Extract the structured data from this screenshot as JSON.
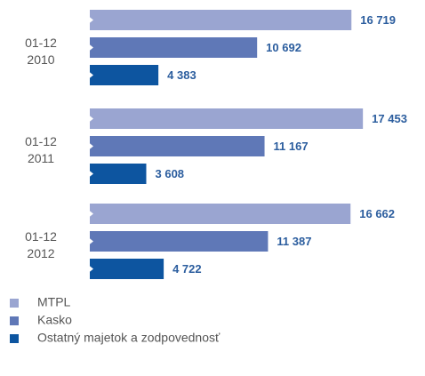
{
  "chart_data": {
    "type": "bar",
    "orientation": "horizontal",
    "categories": [
      "01-12\n2010",
      "01-12\n2011",
      "01-12\n2012"
    ],
    "series": [
      {
        "name": "MTPL",
        "color": "#9aa5d1",
        "values": [
          16719,
          17453,
          16662
        ],
        "value_labels": [
          "16 719",
          "17 453",
          "16 662"
        ]
      },
      {
        "name": "Kasko",
        "color": "#5f78b7",
        "values": [
          10692,
          11167,
          11387
        ],
        "value_labels": [
          "10 692",
          "11 167",
          "11 387"
        ]
      },
      {
        "name": "Ostatný majetok a zodpovednosť",
        "color": "#0d55a0",
        "values": [
          4383,
          3608,
          4722
        ],
        "value_labels": [
          "4 383",
          "3 608",
          "4 722"
        ]
      }
    ],
    "xlim": [
      0,
      20000
    ]
  }
}
